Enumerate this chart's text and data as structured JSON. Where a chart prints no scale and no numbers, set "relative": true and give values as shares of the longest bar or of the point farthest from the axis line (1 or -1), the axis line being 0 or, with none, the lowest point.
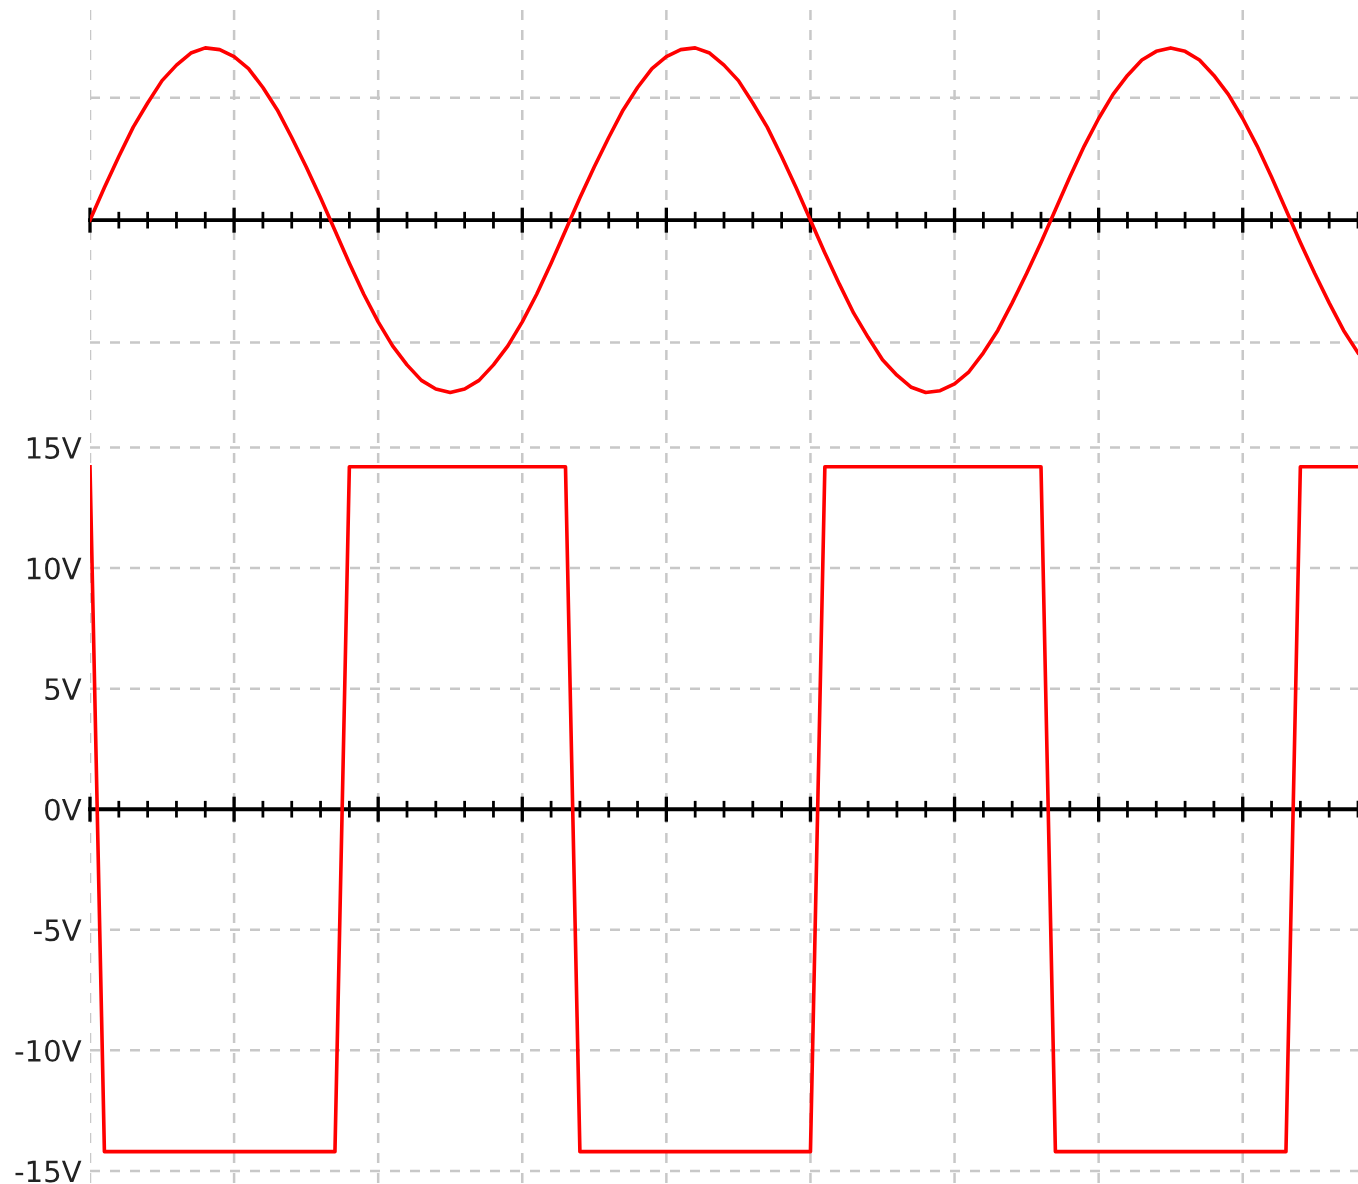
{
  "chart_data": [
    {
      "type": "line",
      "relative": true,
      "categories": [
        null,
        null,
        null,
        null,
        null,
        null,
        null,
        null,
        null,
        null,
        null,
        null,
        null,
        null,
        null,
        null,
        null,
        null,
        null,
        null,
        null,
        null,
        null,
        null,
        null,
        null,
        null,
        null,
        null,
        null,
        null,
        null,
        null,
        null,
        null,
        null,
        null,
        null,
        null,
        null,
        null,
        null,
        null,
        null,
        null,
        null,
        null,
        null,
        null,
        null,
        null,
        null,
        null,
        null,
        null,
        null,
        null,
        null,
        null,
        null,
        null,
        null,
        null,
        null,
        null,
        null,
        null,
        null,
        null,
        null,
        null,
        null,
        null,
        null,
        null,
        null,
        null,
        null,
        null,
        null,
        null,
        null,
        null,
        null,
        null,
        null,
        null,
        null,
        null
      ],
      "grid": true,
      "tick_labels": false,
      "marker": "none",
      "line_style": "solid",
      "series": [
        {
          "color": "#ff0000",
          "values": [
            0,
            0.19,
            0.37,
            0.54,
            0.68,
            0.81,
            0.9,
            0.97,
            1.0,
            0.99,
            0.95,
            0.88,
            0.77,
            0.64,
            0.48,
            0.31,
            0.13,
            -0.06,
            -0.25,
            -0.43,
            -0.59,
            -0.73,
            -0.84,
            -0.93,
            -0.98,
            -1.0,
            -0.98,
            -0.93,
            -0.84,
            -0.73,
            -0.59,
            -0.43,
            -0.25,
            -0.06,
            0.13,
            0.31,
            0.48,
            0.64,
            0.77,
            0.88,
            0.95,
            0.99,
            1.0,
            0.97,
            0.9,
            0.81,
            0.68,
            0.54,
            0.37,
            0.19,
            0,
            -0.19,
            -0.37,
            -0.54,
            -0.68,
            -0.81,
            -0.9,
            -0.97,
            -1.0,
            -0.99,
            -0.95,
            -0.88,
            -0.77,
            -0.64,
            -0.48,
            -0.31,
            -0.13,
            0.06,
            0.25,
            0.43,
            0.59,
            0.73,
            0.84,
            0.93,
            0.98,
            1.0,
            0.98,
            0.93,
            0.84,
            0.73,
            0.59,
            0.43,
            0.25,
            0.06,
            -0.13,
            -0.31,
            -0.48,
            -0.64,
            -0.77
          ]
        }
      ]
    },
    {
      "type": "line",
      "ylim": [
        -15.5,
        15.6
      ],
      "categories": [
        null,
        null,
        null,
        null,
        null,
        null,
        null,
        null,
        null,
        null,
        null,
        null,
        null,
        null,
        null,
        null,
        null,
        null,
        null,
        null,
        null,
        null,
        null,
        null,
        null,
        null,
        null,
        null,
        null,
        null,
        null,
        null,
        null,
        null,
        null,
        null,
        null,
        null,
        null,
        null,
        null,
        null,
        null,
        null,
        null,
        null,
        null,
        null,
        null,
        null,
        null,
        null,
        null,
        null,
        null,
        null,
        null,
        null,
        null,
        null,
        null,
        null,
        null,
        null,
        null,
        null,
        null,
        null,
        null,
        null,
        null,
        null,
        null,
        null,
        null,
        null,
        null,
        null,
        null,
        null,
        null,
        null,
        null,
        null,
        null,
        null,
        null,
        null,
        null
      ],
      "yticks": [
        {
          "value": 15,
          "label": "15V"
        },
        {
          "value": 10,
          "label": "10V"
        },
        {
          "value": 5,
          "label": "5V"
        },
        {
          "value": 0,
          "label": "0V"
        },
        {
          "value": -5,
          "label": "-5V"
        },
        {
          "value": -10,
          "label": "-10V"
        },
        {
          "value": -15,
          "label": "-15V"
        }
      ],
      "grid": true,
      "tick_labels": "y",
      "marker": "none",
      "line_style": "solid",
      "series": [
        {
          "color": "#ff0000",
          "values": [
            14.2,
            -14.2,
            -14.2,
            -14.2,
            -14.2,
            -14.2,
            -14.2,
            -14.2,
            -14.2,
            -14.2,
            -14.2,
            -14.2,
            -14.2,
            -14.2,
            -14.2,
            -14.2,
            -14.2,
            -14.2,
            14.2,
            14.2,
            14.2,
            14.2,
            14.2,
            14.2,
            14.2,
            14.2,
            14.2,
            14.2,
            14.2,
            14.2,
            14.2,
            14.2,
            14.2,
            14.2,
            -14.2,
            -14.2,
            -14.2,
            -14.2,
            -14.2,
            -14.2,
            -14.2,
            -14.2,
            -14.2,
            -14.2,
            -14.2,
            -14.2,
            -14.2,
            -14.2,
            -14.2,
            -14.2,
            -14.2,
            14.2,
            14.2,
            14.2,
            14.2,
            14.2,
            14.2,
            14.2,
            14.2,
            14.2,
            14.2,
            14.2,
            14.2,
            14.2,
            14.2,
            14.2,
            14.2,
            -14.2,
            -14.2,
            -14.2,
            -14.2,
            -14.2,
            -14.2,
            -14.2,
            -14.2,
            -14.2,
            -14.2,
            -14.2,
            -14.2,
            -14.2,
            -14.2,
            -14.2,
            -14.2,
            -14.2,
            14.2,
            14.2,
            14.2,
            14.2,
            14.2
          ]
        }
      ]
    }
  ]
}
